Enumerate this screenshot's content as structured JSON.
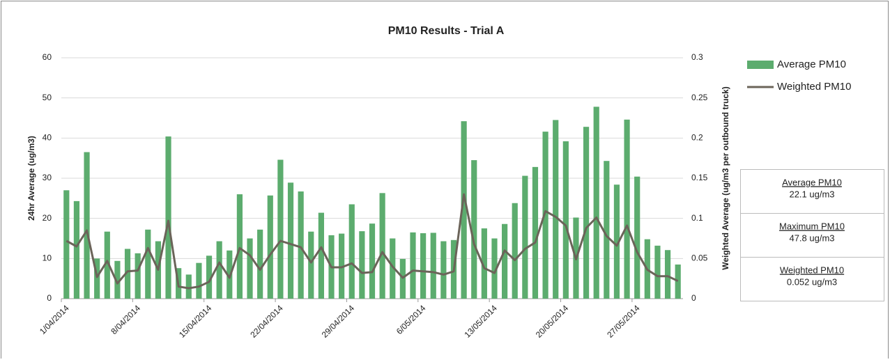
{
  "chart_data": {
    "type": "bar-line",
    "title": "PM10 Results - Trial A",
    "y_label": "24hr Average (ug/m3)",
    "y2_label": "Weighted Average (ug/m3 per outbound truck)",
    "categories": [
      "1/04/2014",
      null,
      null,
      null,
      null,
      null,
      null,
      "8/04/2014",
      null,
      null,
      null,
      null,
      null,
      null,
      "15/04/2014",
      null,
      null,
      null,
      null,
      null,
      null,
      "22/04/2014",
      null,
      null,
      null,
      null,
      null,
      null,
      "29/04/2014",
      null,
      null,
      null,
      null,
      null,
      null,
      "6/05/2014",
      null,
      null,
      null,
      null,
      null,
      null,
      "13/05/2014",
      null,
      null,
      null,
      null,
      null,
      null,
      "20/05/2014",
      null,
      null,
      null,
      null,
      null,
      null,
      "27/05/2014",
      null,
      null,
      null,
      null
    ],
    "series": [
      {
        "name": "Average PM10",
        "color": "#5cac6e",
        "kind": "bar",
        "values": [
          27,
          24.3,
          36.5,
          10,
          16.7,
          9.4,
          12.4,
          11.3,
          17.2,
          14.3,
          40.4,
          7.6,
          6,
          8.9,
          10.7,
          14.3,
          12,
          26,
          15,
          17.2,
          25.7,
          34.6,
          28.9,
          26.7,
          16.7,
          21.4,
          15.8,
          16.2,
          23.5,
          16.8,
          18.7,
          26.3,
          15,
          9.9,
          16.5,
          16.3,
          16.4,
          14.3,
          14.6,
          44.2,
          34.5,
          17.5,
          15,
          18.6,
          23.8,
          30.6,
          32.8,
          41.6,
          44.5,
          39.2,
          20.2,
          42.8,
          47.8,
          34.3,
          28.4,
          44.6,
          30.4,
          14.8,
          13.2,
          12.1,
          8.5
        ]
      },
      {
        "name": "Weighted PM10",
        "color": "#6b6459",
        "kind": "line",
        "axis": "y2",
        "values": [
          0.072,
          0.065,
          0.085,
          0.027,
          0.047,
          0.019,
          0.034,
          0.035,
          0.063,
          0.036,
          0.097,
          0.015,
          0.013,
          0.015,
          0.021,
          0.045,
          0.026,
          0.063,
          0.054,
          0.036,
          0.055,
          0.072,
          0.068,
          0.064,
          0.045,
          0.064,
          0.039,
          0.039,
          0.044,
          0.032,
          0.033,
          0.058,
          0.04,
          0.026,
          0.035,
          0.034,
          0.033,
          0.03,
          0.034,
          0.13,
          0.068,
          0.038,
          0.032,
          0.06,
          0.048,
          0.062,
          0.07,
          0.109,
          0.102,
          0.091,
          0.049,
          0.088,
          0.101,
          0.078,
          0.066,
          0.091,
          0.058,
          0.036,
          0.028,
          0.028,
          0.022
        ]
      }
    ],
    "ylim": [
      0,
      60
    ],
    "yticks": [
      0,
      10,
      20,
      30,
      40,
      50,
      60
    ],
    "y2lim": [
      0,
      0.3
    ],
    "y2ticks": [
      0,
      0.05,
      0.1,
      0.15,
      0.2,
      0.25,
      0.3
    ],
    "grid": true,
    "legend": "right"
  },
  "summary": [
    {
      "label": "Average PM10",
      "value": "22.1 ug/m3"
    },
    {
      "label": "Maximum PM10",
      "value": "47.8 ug/m3"
    },
    {
      "label": "Weighted PM10",
      "value": "0.052 ug/m3"
    }
  ]
}
